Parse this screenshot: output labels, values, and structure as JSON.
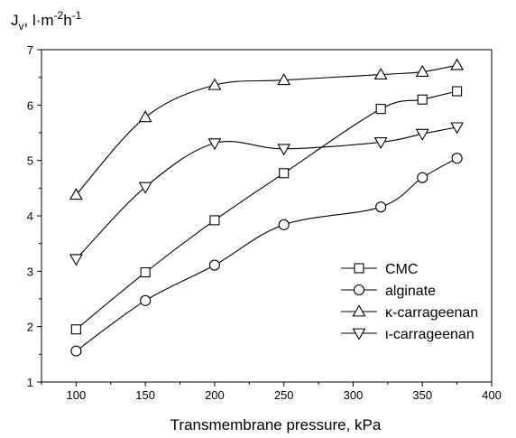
{
  "chart_data": {
    "type": "line",
    "xlabel": "Transmembrane pressure, kPa",
    "ylabel": {
      "base": "J",
      "sub": "v",
      "rest": ", l·m",
      "sup1": "-2",
      "mid": "h",
      "sup2": "-1"
    },
    "xlim": [
      75,
      400
    ],
    "ylim": [
      1,
      7
    ],
    "xticks": [
      100,
      150,
      200,
      250,
      300,
      350,
      400
    ],
    "yticks": [
      1,
      2,
      3,
      4,
      5,
      6,
      7
    ],
    "grid": false,
    "legend_position": "bottom-right",
    "series": [
      {
        "name": "CMC",
        "marker": "square",
        "x": [
          100,
          150,
          200,
          250,
          320,
          350,
          375
        ],
        "y": [
          1.95,
          2.98,
          3.92,
          4.77,
          5.93,
          6.1,
          6.25
        ]
      },
      {
        "name": "alginate",
        "marker": "circle",
        "x": [
          100,
          150,
          200,
          250,
          320,
          350,
          375
        ],
        "y": [
          1.56,
          2.47,
          3.11,
          3.84,
          4.16,
          4.69,
          5.04
        ]
      },
      {
        "name": "κ-carrageenan",
        "marker": "triangle-up",
        "x": [
          100,
          150,
          200,
          250,
          320,
          350,
          375
        ],
        "y": [
          4.38,
          5.78,
          6.36,
          6.45,
          6.55,
          6.6,
          6.72
        ]
      },
      {
        "name": "ι-carrageenan",
        "marker": "triangle-down",
        "x": [
          100,
          150,
          200,
          250,
          320,
          350,
          375
        ],
        "y": [
          3.22,
          4.52,
          5.31,
          5.21,
          5.33,
          5.48,
          5.6
        ]
      }
    ]
  }
}
